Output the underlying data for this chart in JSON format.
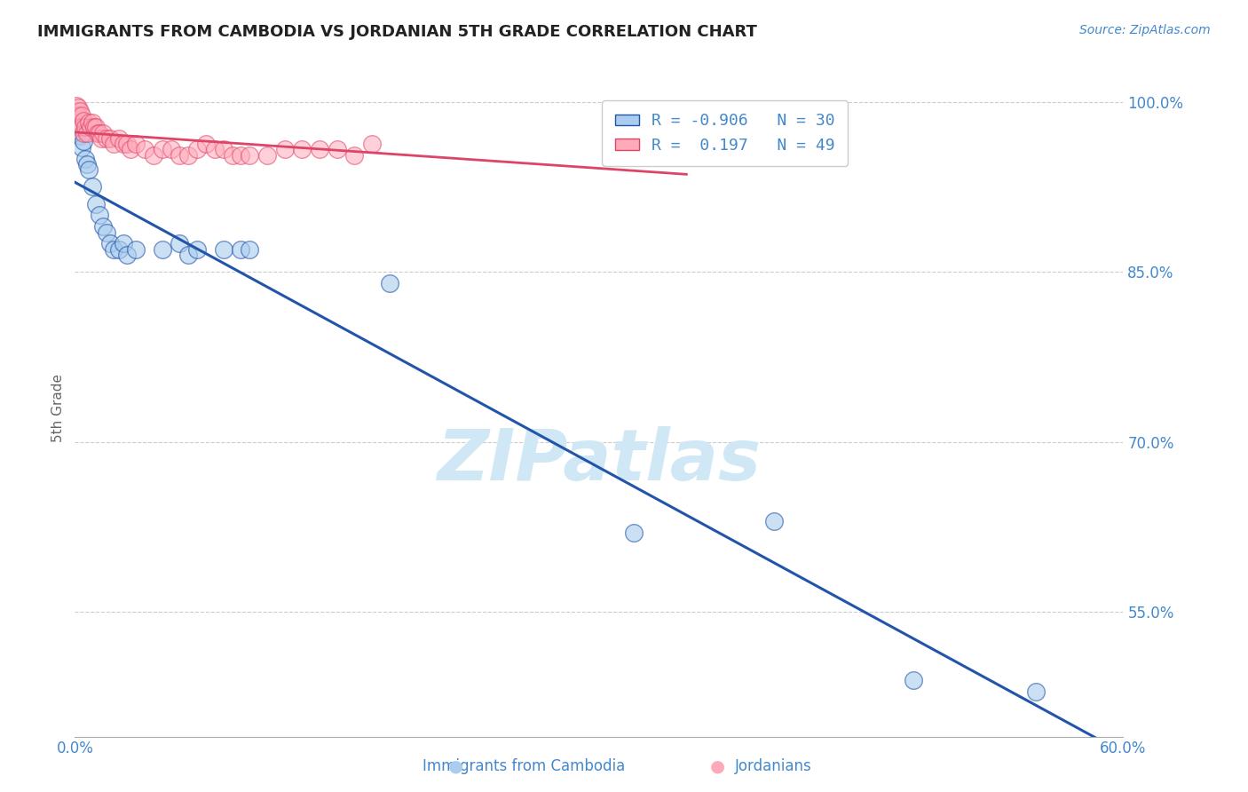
{
  "title": "IMMIGRANTS FROM CAMBODIA VS JORDANIAN 5TH GRADE CORRELATION CHART",
  "source": "Source: ZipAtlas.com",
  "ylabel": "5th Grade",
  "xlabel_blue": "Immigrants from Cambodia",
  "xlabel_pink": "Jordanians",
  "watermark": "ZIPatlas",
  "legend_blue_R": "-0.906",
  "legend_blue_N": "30",
  "legend_pink_R": "0.197",
  "legend_pink_N": "49",
  "xlim": [
    0.0,
    0.6
  ],
  "ylim": [
    0.44,
    1.02
  ],
  "yticks": [
    0.55,
    0.7,
    0.85,
    1.0
  ],
  "ytick_labels": [
    "55.0%",
    "70.0%",
    "85.0%",
    "100.0%"
  ],
  "xtick_pos": [
    0.0,
    0.1,
    0.2,
    0.3,
    0.4,
    0.5,
    0.6
  ],
  "xtick_labels": [
    "0.0%",
    "",
    "",
    "",
    "",
    "",
    "60.0%"
  ],
  "blue_scatter": [
    [
      0.002,
      0.975
    ],
    [
      0.003,
      0.97
    ],
    [
      0.004,
      0.96
    ],
    [
      0.005,
      0.965
    ],
    [
      0.006,
      0.95
    ],
    [
      0.007,
      0.945
    ],
    [
      0.008,
      0.94
    ],
    [
      0.01,
      0.925
    ],
    [
      0.012,
      0.91
    ],
    [
      0.014,
      0.9
    ],
    [
      0.016,
      0.89
    ],
    [
      0.018,
      0.885
    ],
    [
      0.02,
      0.875
    ],
    [
      0.022,
      0.87
    ],
    [
      0.025,
      0.87
    ],
    [
      0.028,
      0.875
    ],
    [
      0.03,
      0.865
    ],
    [
      0.035,
      0.87
    ],
    [
      0.05,
      0.87
    ],
    [
      0.06,
      0.875
    ],
    [
      0.065,
      0.865
    ],
    [
      0.07,
      0.87
    ],
    [
      0.085,
      0.87
    ],
    [
      0.095,
      0.87
    ],
    [
      0.1,
      0.87
    ],
    [
      0.18,
      0.84
    ],
    [
      0.32,
      0.62
    ],
    [
      0.4,
      0.63
    ],
    [
      0.48,
      0.49
    ],
    [
      0.55,
      0.48
    ]
  ],
  "pink_scatter": [
    [
      0.001,
      0.997
    ],
    [
      0.002,
      0.995
    ],
    [
      0.002,
      0.988
    ],
    [
      0.003,
      0.992
    ],
    [
      0.003,
      0.978
    ],
    [
      0.004,
      0.988
    ],
    [
      0.004,
      0.978
    ],
    [
      0.005,
      0.983
    ],
    [
      0.005,
      0.972
    ],
    [
      0.006,
      0.978
    ],
    [
      0.007,
      0.972
    ],
    [
      0.008,
      0.982
    ],
    [
      0.009,
      0.978
    ],
    [
      0.01,
      0.982
    ],
    [
      0.011,
      0.978
    ],
    [
      0.012,
      0.978
    ],
    [
      0.013,
      0.972
    ],
    [
      0.014,
      0.972
    ],
    [
      0.015,
      0.968
    ],
    [
      0.016,
      0.972
    ],
    [
      0.018,
      0.968
    ],
    [
      0.02,
      0.968
    ],
    [
      0.022,
      0.963
    ],
    [
      0.025,
      0.968
    ],
    [
      0.028,
      0.963
    ],
    [
      0.03,
      0.963
    ],
    [
      0.032,
      0.958
    ],
    [
      0.035,
      0.963
    ],
    [
      0.04,
      0.958
    ],
    [
      0.045,
      0.953
    ],
    [
      0.05,
      0.958
    ],
    [
      0.055,
      0.958
    ],
    [
      0.06,
      0.953
    ],
    [
      0.065,
      0.953
    ],
    [
      0.07,
      0.958
    ],
    [
      0.075,
      0.963
    ],
    [
      0.08,
      0.958
    ],
    [
      0.085,
      0.958
    ],
    [
      0.09,
      0.953
    ],
    [
      0.095,
      0.953
    ],
    [
      0.1,
      0.953
    ],
    [
      0.11,
      0.953
    ],
    [
      0.12,
      0.958
    ],
    [
      0.13,
      0.958
    ],
    [
      0.14,
      0.958
    ],
    [
      0.15,
      0.958
    ],
    [
      0.16,
      0.953
    ],
    [
      0.17,
      0.963
    ],
    [
      0.33,
      0.968
    ]
  ],
  "blue_color": "#aaccee",
  "pink_color": "#ffaabb",
  "blue_line_color": "#2255aa",
  "pink_line_color": "#dd4466",
  "title_color": "#222222",
  "axis_label_color": "#666666",
  "tick_color": "#4488cc",
  "grid_color": "#cccccc",
  "background_color": "#ffffff",
  "watermark_color": "#d0e8f5"
}
